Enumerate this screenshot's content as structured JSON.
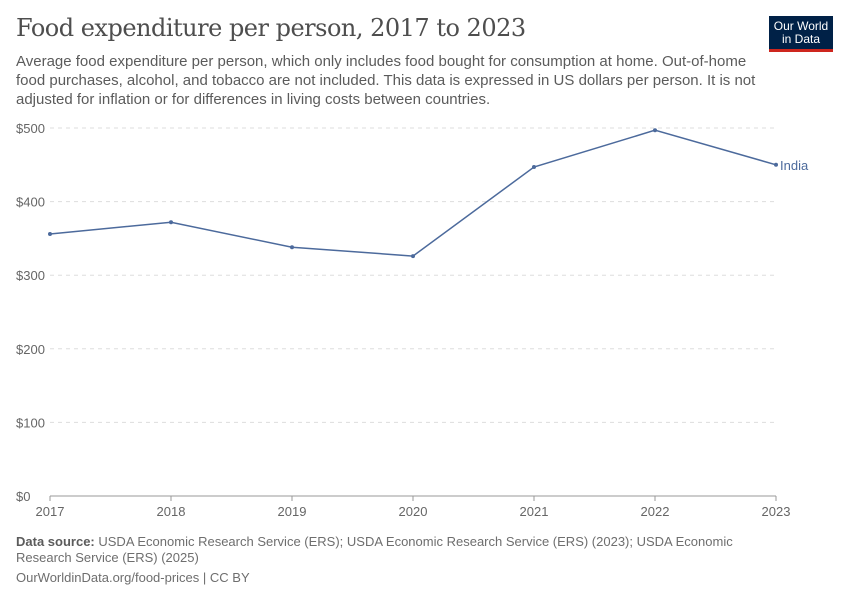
{
  "title": "Food expenditure per person, 2017 to 2023",
  "subtitle": "Average food expenditure per person, which only includes food bought for consumption at home. Out-of-home food purchases, alcohol, and tobacco are not included. This data is expressed in US dollars per person. It is not adjusted for inflation or for differences in living costs between countries.",
  "logo": {
    "line1": "Our World",
    "line2": "in Data"
  },
  "footer": {
    "source_label": "Data source:",
    "source": "USDA Economic Research Service (ERS); USDA Economic Research Service (ERS) (2023); USDA Economic Research Service (ERS) (2025)",
    "url": "OurWorldinData.org/food-prices | CC BY"
  },
  "chart_data": {
    "type": "line",
    "x": [
      2017,
      2018,
      2019,
      2020,
      2021,
      2022,
      2023
    ],
    "series": [
      {
        "name": "India",
        "values": [
          356,
          372,
          338,
          326,
          447,
          497,
          450
        ],
        "color": "#4c6a9c"
      }
    ],
    "yticks": [
      "$0",
      "$100",
      "$200",
      "$300",
      "$400",
      "$500"
    ],
    "ylim": [
      0,
      500
    ],
    "grid": true
  }
}
